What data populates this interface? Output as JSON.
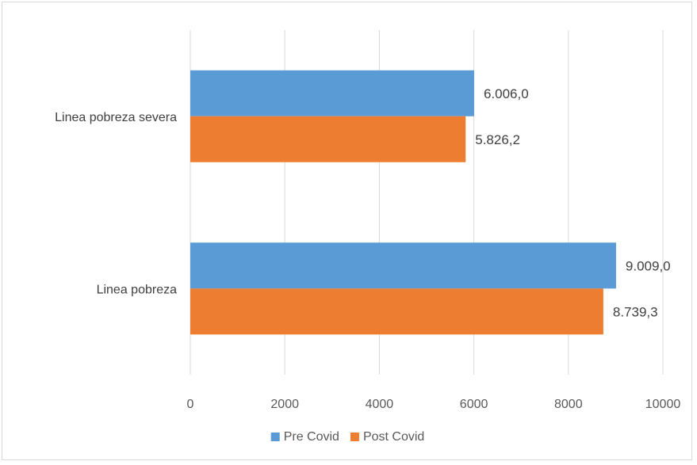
{
  "chart_data": {
    "type": "bar",
    "orientation": "horizontal",
    "categories": [
      "Linea pobreza severa",
      "Linea pobreza"
    ],
    "series": [
      {
        "name": "Pre Covid",
        "color": "#5b9bd5",
        "values": [
          6006.0,
          9009.0
        ],
        "labels": [
          "6.006,0",
          "9.009,0"
        ]
      },
      {
        "name": "Post Covid",
        "color": "#ed7d31",
        "values": [
          5826.2,
          8739.3
        ],
        "labels": [
          "5.826,2",
          "8.739,3"
        ]
      }
    ],
    "xlim": [
      0,
      10000
    ],
    "xticks": [
      0,
      2000,
      4000,
      6000,
      8000,
      10000
    ],
    "xtick_labels": [
      "0",
      "2000",
      "4000",
      "6000",
      "8000",
      "10000"
    ],
    "grid": true,
    "legend_position": "bottom",
    "title": "",
    "xlabel": "",
    "ylabel": ""
  }
}
